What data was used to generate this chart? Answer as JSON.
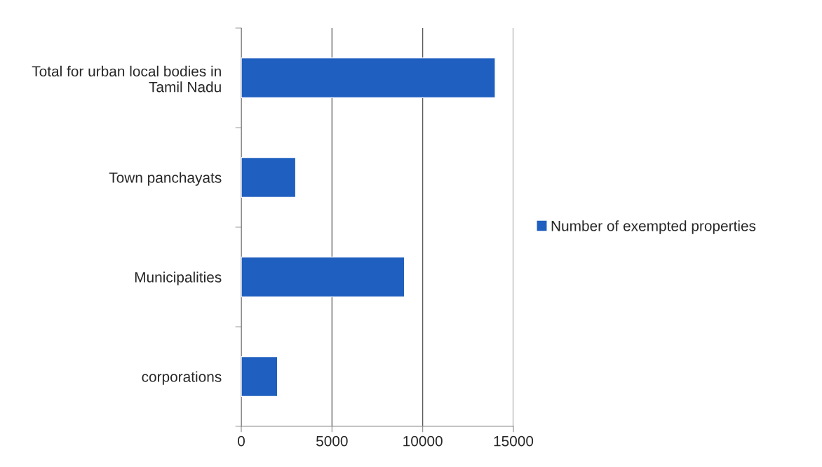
{
  "chart_data": {
    "type": "bar",
    "orientation": "horizontal",
    "categories": [
      "Total for urban local bodies in\nTamil Nadu",
      "Town panchayats",
      "Municipalities",
      "corporations"
    ],
    "series": [
      {
        "name": "Number of exempted properties",
        "color": "#1f5fbf",
        "values": [
          14000,
          3000,
          9000,
          2000
        ]
      }
    ],
    "xlim": [
      0,
      15000
    ],
    "xticks": [
      0,
      5000,
      10000,
      15000
    ],
    "grid": "x",
    "legend": "right"
  }
}
